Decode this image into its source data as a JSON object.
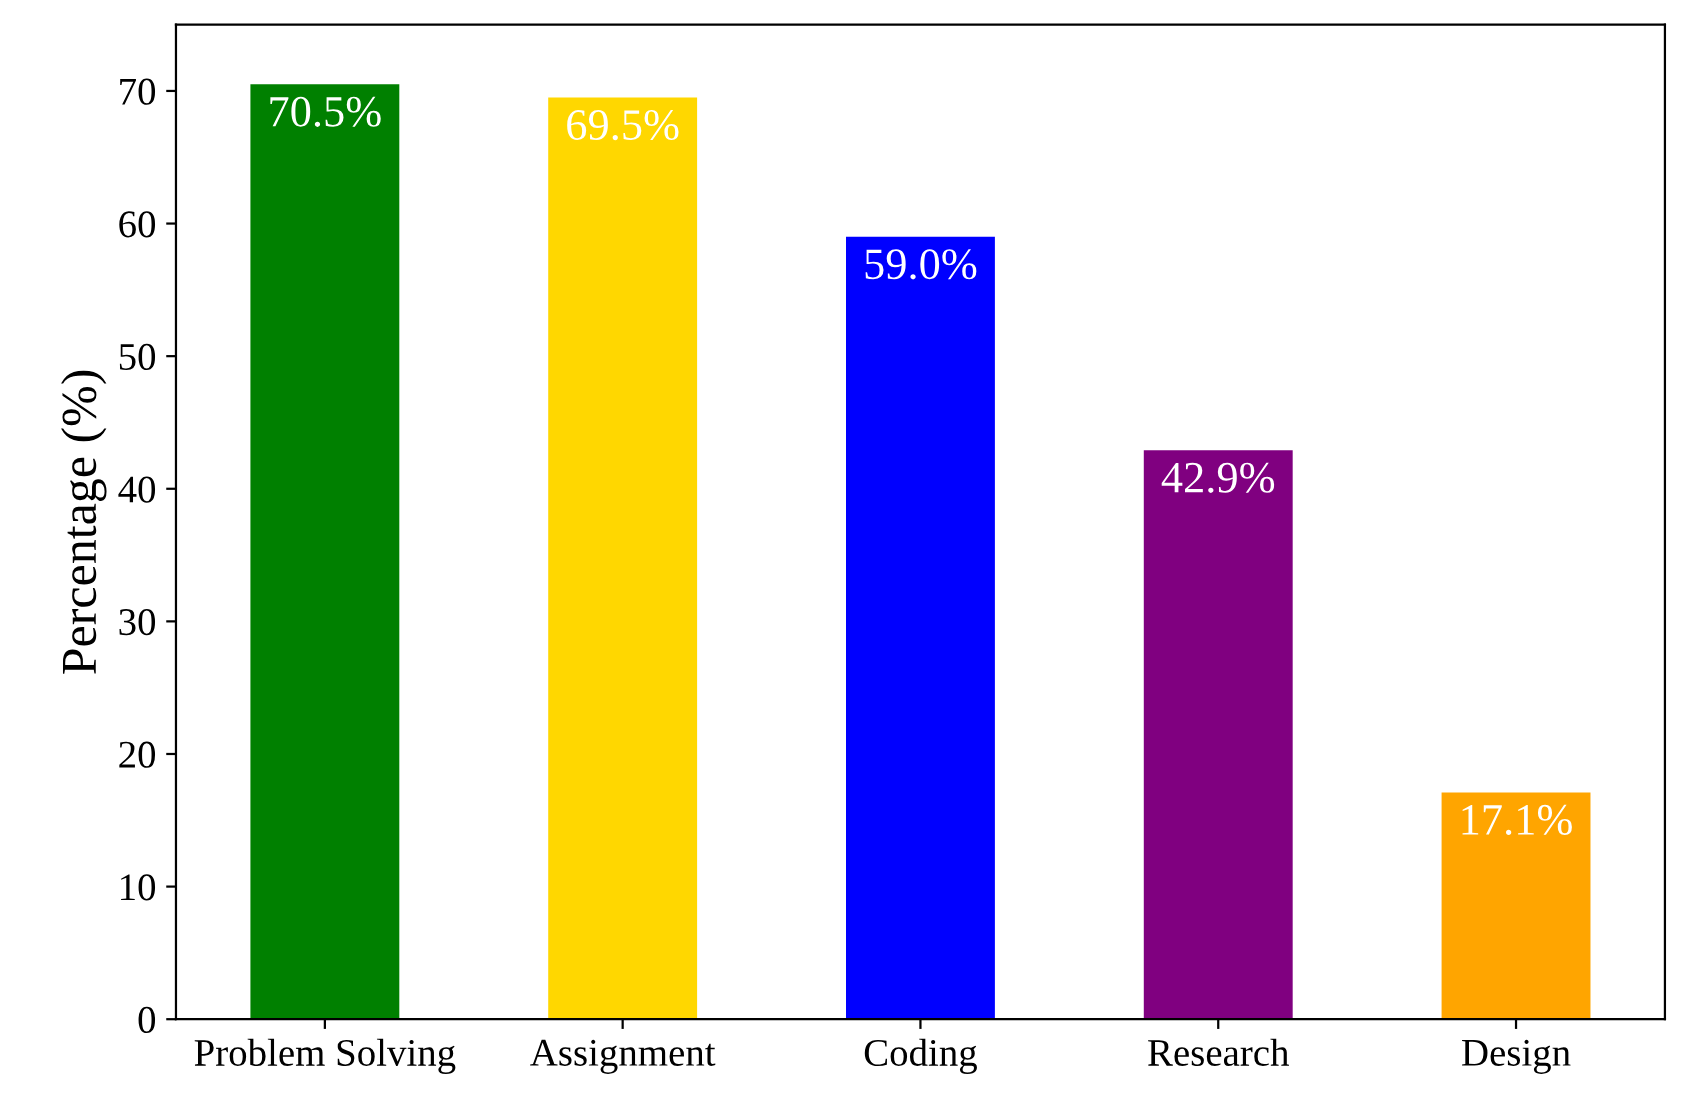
{
  "chart_data": {
    "type": "bar",
    "ylabel": "Percentage (%)",
    "categories": [
      "Problem Solving",
      "Assignment",
      "Coding",
      "Research",
      "Design"
    ],
    "values": [
      70.5,
      69.5,
      59.0,
      42.9,
      17.1
    ],
    "colors": [
      "#008000",
      "#ffd700",
      "#0000ff",
      "#800080",
      "#ffa500"
    ],
    "value_labels": [
      "70.5%",
      "69.5%",
      "59.0%",
      "42.9%",
      "17.1%"
    ],
    "ylim": [
      0,
      75
    ],
    "yticks": [
      0,
      10,
      20,
      30,
      40,
      50,
      60,
      70
    ],
    "grid": false,
    "legend": false
  }
}
